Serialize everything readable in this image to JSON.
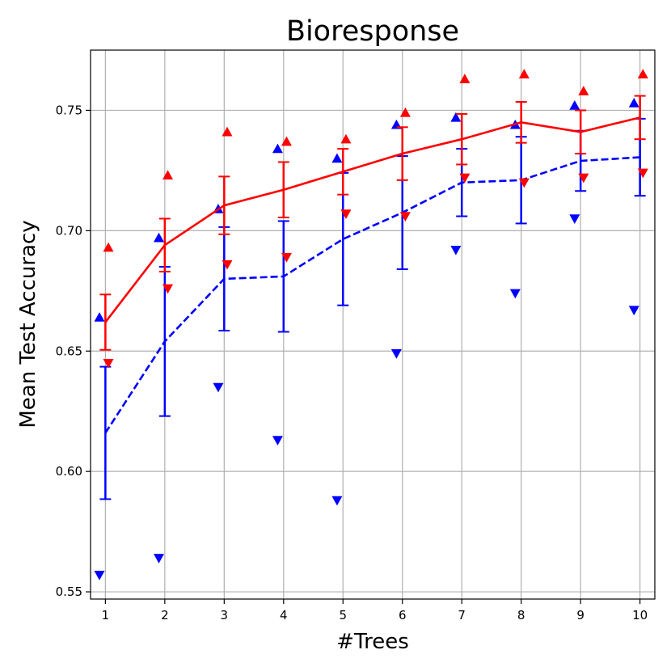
{
  "chart_data": {
    "type": "line",
    "title": "Bioresponse",
    "xlabel": "#Trees",
    "ylabel": "Mean Test Accuracy",
    "x": [
      1,
      2,
      3,
      4,
      5,
      6,
      7,
      8,
      9,
      10
    ],
    "xlim": [
      0.75,
      10.25
    ],
    "ylim": [
      0.547,
      0.775
    ],
    "x_ticks": [
      1,
      2,
      3,
      4,
      5,
      6,
      7,
      8,
      9,
      10
    ],
    "y_ticks": [
      0.55,
      0.6,
      0.65,
      0.7,
      0.75
    ],
    "y_tick_labels": [
      "0.55",
      "0.60",
      "0.65",
      "0.70",
      "0.75"
    ],
    "grid": true,
    "series": [
      {
        "name": "red",
        "color": "#ff0000",
        "line_style": "solid",
        "mean": [
          0.662,
          0.694,
          0.7105,
          0.717,
          0.7245,
          0.732,
          0.738,
          0.745,
          0.741,
          0.747
        ],
        "std": [
          0.0115,
          0.011,
          0.012,
          0.0115,
          0.0095,
          0.011,
          0.0105,
          0.0085,
          0.009,
          0.009
        ],
        "max": [
          0.693,
          0.723,
          0.741,
          0.737,
          0.738,
          0.749,
          0.763,
          0.765,
          0.758,
          0.765
        ],
        "min": [
          0.645,
          0.676,
          0.686,
          0.689,
          0.707,
          0.706,
          0.722,
          0.72,
          0.722,
          0.724
        ],
        "marker_x_offset": 0.05
      },
      {
        "name": "blue",
        "color": "#0000ff",
        "line_style": "dashed",
        "mean": [
          0.616,
          0.654,
          0.68,
          0.681,
          0.6965,
          0.7075,
          0.72,
          0.721,
          0.729,
          0.7305
        ],
        "std": [
          0.0275,
          0.031,
          0.0215,
          0.023,
          0.0275,
          0.0235,
          0.014,
          0.018,
          0.0125,
          0.016
        ],
        "max": [
          0.664,
          0.697,
          0.709,
          0.734,
          0.73,
          0.744,
          0.747,
          0.744,
          0.752,
          0.753
        ],
        "min": [
          0.557,
          0.564,
          0.635,
          0.613,
          0.588,
          0.649,
          0.692,
          0.674,
          0.705,
          0.667
        ],
        "marker_x_offset": -0.1
      }
    ]
  }
}
